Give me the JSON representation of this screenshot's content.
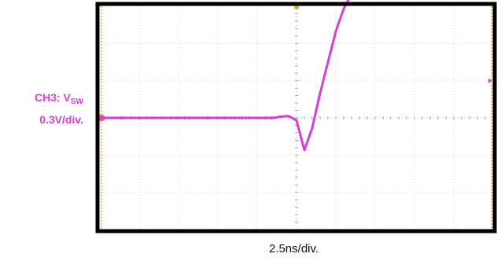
{
  "channel": {
    "name_prefix": "CH3: V",
    "name_subscript": "SW",
    "scale": "0.3V/div.",
    "color": "#d63fd6"
  },
  "timebase": "2.5ns/div.",
  "chart_data": {
    "type": "line",
    "title": "",
    "xlabel": "2.5ns/div.",
    "ylabel": "CH3: VSW 0.3V/div.",
    "grid": true,
    "x_divisions": 10,
    "y_divisions": 6,
    "x_unit": "ns",
    "y_unit": "V",
    "xlim": [
      -12.5,
      12.5
    ],
    "ylim": [
      -0.9,
      0.9
    ],
    "series": [
      {
        "x": [
          -12.5,
          -6.0,
          -1.5,
          -1.0,
          -0.5,
          0.0,
          0.5,
          1.0,
          1.5,
          2.0,
          2.5,
          3.0,
          3.5
        ],
        "y": [
          0.0,
          0.0,
          0.0,
          0.01,
          0.015,
          -0.02,
          -0.26,
          -0.08,
          0.2,
          0.45,
          0.7,
          0.88,
          1.0
        ]
      }
    ]
  }
}
